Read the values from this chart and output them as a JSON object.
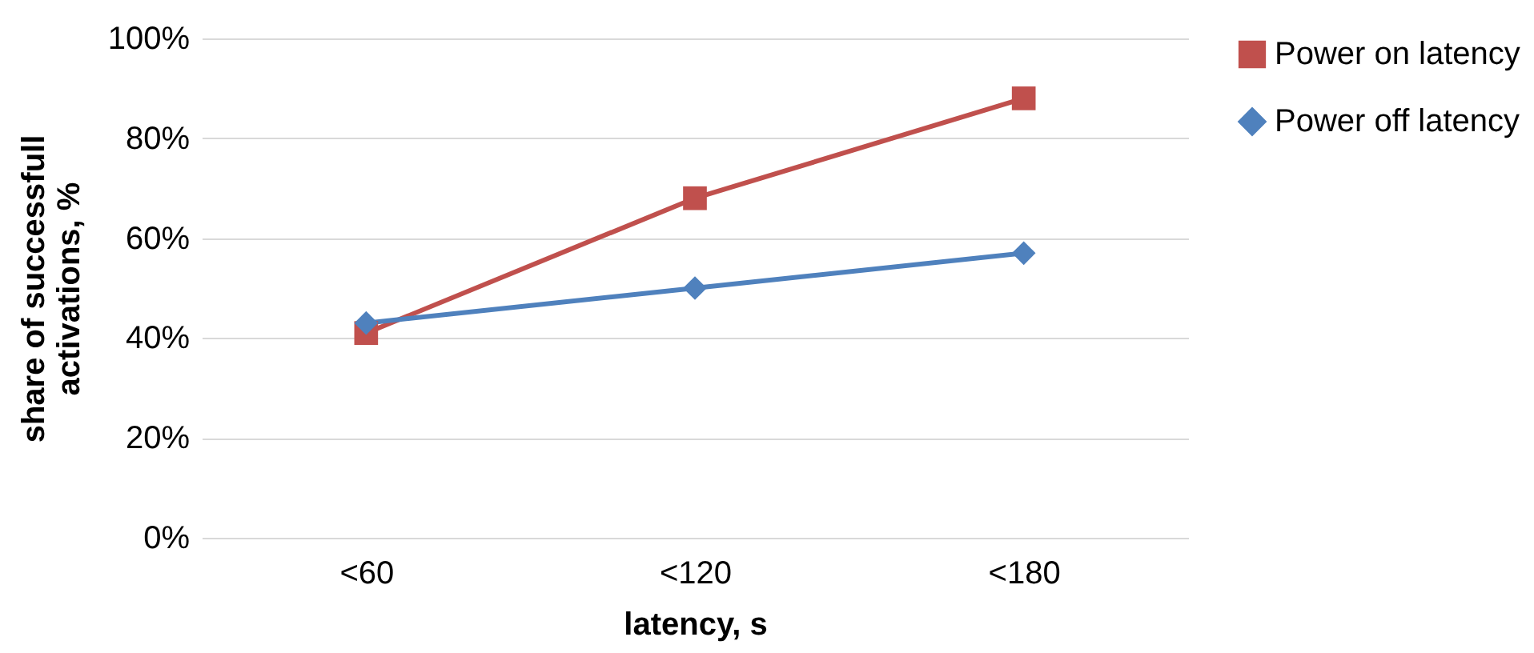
{
  "chart_data": {
    "type": "line",
    "xlabel": "latency, s",
    "ylabel": "share of successfull activations, %",
    "categories": [
      "<60",
      "<120",
      "<180"
    ],
    "series": [
      {
        "name": "Power on latency",
        "color": "#c0504d",
        "marker": "square",
        "values": [
          41,
          68,
          88
        ]
      },
      {
        "name": "Power off latency",
        "color": "#4f81bd",
        "marker": "diamond",
        "values": [
          43,
          50,
          57
        ]
      }
    ],
    "ylim": [
      0,
      100
    ],
    "yticks": [
      {
        "value": 0,
        "label": "0%"
      },
      {
        "value": 20,
        "label": "20%"
      },
      {
        "value": 40,
        "label": "40%"
      },
      {
        "value": 60,
        "label": "60%"
      },
      {
        "value": 80,
        "label": "80%"
      },
      {
        "value": 100,
        "label": "100%"
      }
    ],
    "grid": "y",
    "legend": "right"
  }
}
